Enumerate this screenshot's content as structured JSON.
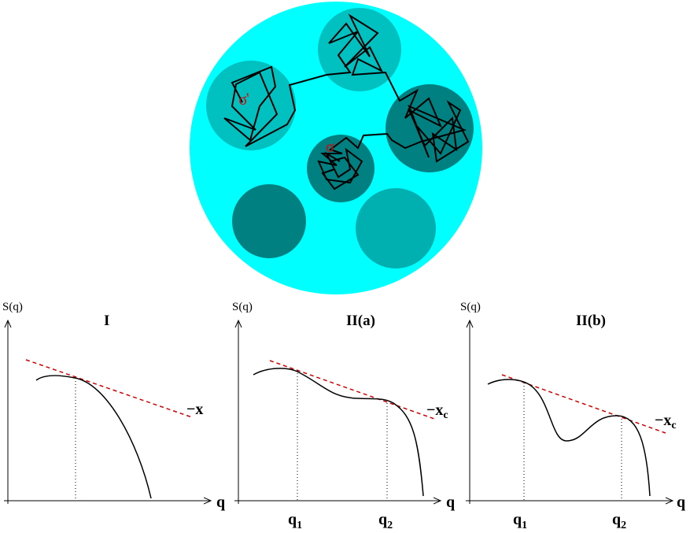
{
  "top": {
    "sigma_prime_label": "σ'",
    "sigma_label": "σ",
    "colors": {
      "outer": "#00ffff",
      "domain_light": "#00c0c0",
      "domain_dark": "#008080",
      "domain_mid": "#00a0a0",
      "chain": "#000000",
      "label": "#e00000"
    }
  },
  "panels": [
    {
      "title": "I",
      "ylabel": "S(q)",
      "xlabel": "q",
      "asymptote_label": "−x",
      "asymptote_subscript": "",
      "qmarks": []
    },
    {
      "title": "II(a)",
      "ylabel": "S(q)",
      "xlabel": "q",
      "asymptote_label": "−x",
      "asymptote_subscript": "c",
      "qmarks": [
        {
          "base": "q",
          "sub": "1"
        },
        {
          "base": "q",
          "sub": "2"
        }
      ]
    },
    {
      "title": "II(b)",
      "ylabel": "S(q)",
      "xlabel": "q",
      "asymptote_label": "−x",
      "asymptote_subscript": "c",
      "qmarks": [
        {
          "base": "q",
          "sub": "1"
        },
        {
          "base": "q",
          "sub": "2"
        }
      ]
    }
  ],
  "styles": {
    "curve": "#000000",
    "dashed": "#d00000"
  }
}
